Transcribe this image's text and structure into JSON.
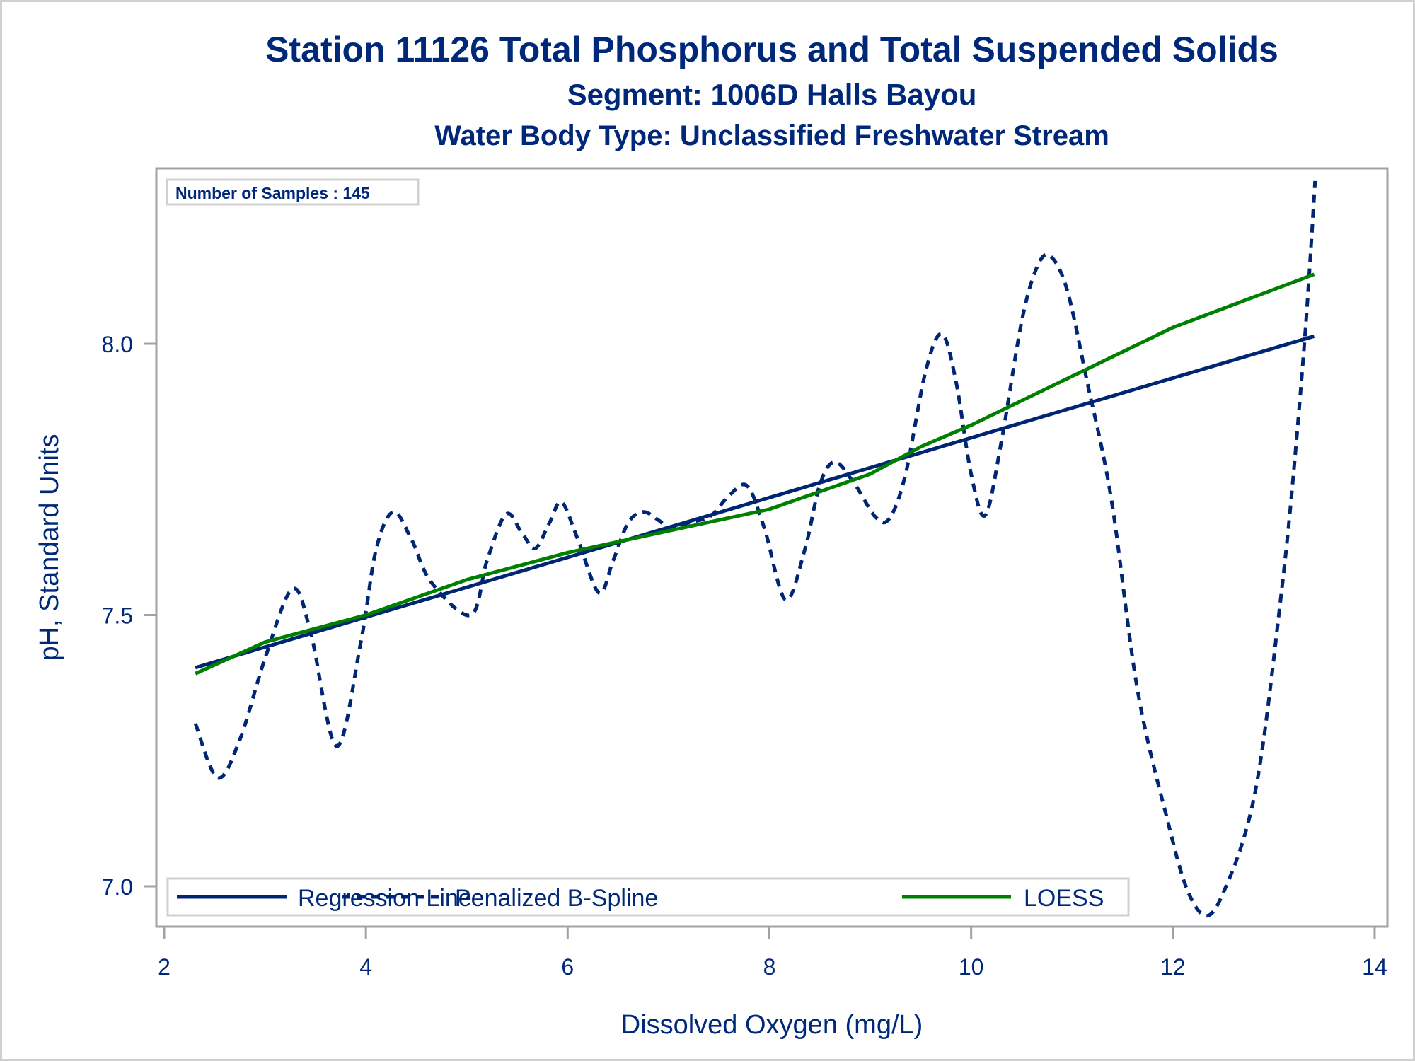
{
  "chart_data": {
    "type": "line",
    "title": "Station 11126  Total Phosphorus and Total Suspended Solids",
    "subtitle": "Segment: 1006D  Halls Bayou",
    "subtitle2": "Water Body Type: Unclassified Freshwater Stream",
    "xlabel": "Dissolved Oxygen (mg/L)",
    "ylabel": "pH, Standard Units",
    "xlim": [
      2,
      14
    ],
    "ylim": [
      6.93,
      8.31
    ],
    "x_ticks": [
      2,
      4,
      6,
      8,
      10,
      12,
      14
    ],
    "x_tick_labels": [
      "2",
      "4",
      "6",
      "8",
      "10",
      "12",
      "14"
    ],
    "y_ticks": [
      7.0,
      7.5,
      8.0
    ],
    "y_tick_labels": [
      "7.0",
      "7.5",
      "8.0"
    ],
    "grid": false,
    "inset_text": "Number of Samples : 145",
    "legend_position": "bottom-left-inside",
    "series": [
      {
        "name": "Regression Line",
        "style": "solid",
        "color": "#002673",
        "x": [
          2.31,
          13.4
        ],
        "y": [
          7.403,
          8.014
        ]
      },
      {
        "name": "Penalized B-Spline",
        "style": "dashed",
        "color": "#002673",
        "x": [
          2.31,
          2.53,
          2.75,
          3.0,
          3.27,
          3.45,
          3.71,
          3.95,
          4.1,
          4.27,
          4.45,
          4.65,
          5.04,
          5.2,
          5.39,
          5.55,
          5.68,
          5.82,
          5.94,
          6.1,
          6.31,
          6.45,
          6.6,
          6.75,
          6.9,
          7.01,
          7.2,
          7.42,
          7.6,
          7.78,
          7.95,
          8.16,
          8.35,
          8.5,
          8.65,
          8.85,
          9.05,
          9.19,
          9.35,
          9.55,
          9.71,
          9.85,
          10.0,
          10.14,
          10.3,
          10.5,
          10.65,
          10.78,
          10.95,
          11.15,
          11.39,
          11.65,
          11.95,
          12.15,
          12.35,
          12.55,
          12.75,
          12.89,
          13.05,
          13.17,
          13.31,
          13.41
        ],
        "y": [
          7.3,
          7.2,
          7.27,
          7.42,
          7.548,
          7.47,
          7.258,
          7.45,
          7.62,
          7.69,
          7.64,
          7.56,
          7.5,
          7.6,
          7.686,
          7.65,
          7.623,
          7.67,
          7.708,
          7.64,
          7.541,
          7.6,
          7.67,
          7.69,
          7.675,
          7.661,
          7.67,
          7.683,
          7.72,
          7.738,
          7.66,
          7.528,
          7.62,
          7.74,
          7.782,
          7.74,
          7.681,
          7.678,
          7.76,
          7.95,
          8.018,
          7.93,
          7.76,
          7.684,
          7.82,
          8.04,
          8.14,
          8.162,
          8.1,
          7.93,
          7.713,
          7.361,
          7.119,
          6.99,
          6.946,
          7.01,
          7.12,
          7.258,
          7.5,
          7.708,
          8.017,
          8.3
        ]
      },
      {
        "name": "LOESS",
        "style": "solid",
        "color": "#008000",
        "x": [
          2.31,
          3.0,
          4.0,
          5.0,
          6.0,
          7.0,
          8.0,
          9.0,
          9.5,
          10.0,
          11.0,
          12.0,
          13.0,
          13.4
        ],
        "y": [
          7.392,
          7.45,
          7.5,
          7.565,
          7.615,
          7.655,
          7.695,
          7.76,
          7.81,
          7.85,
          7.94,
          8.03,
          8.1,
          8.128
        ]
      }
    ]
  },
  "colors": {
    "text": "#00287a",
    "line": "#002673",
    "loess": "#008000",
    "frame": "#9fa3a7",
    "border": "#d0d0d0"
  }
}
